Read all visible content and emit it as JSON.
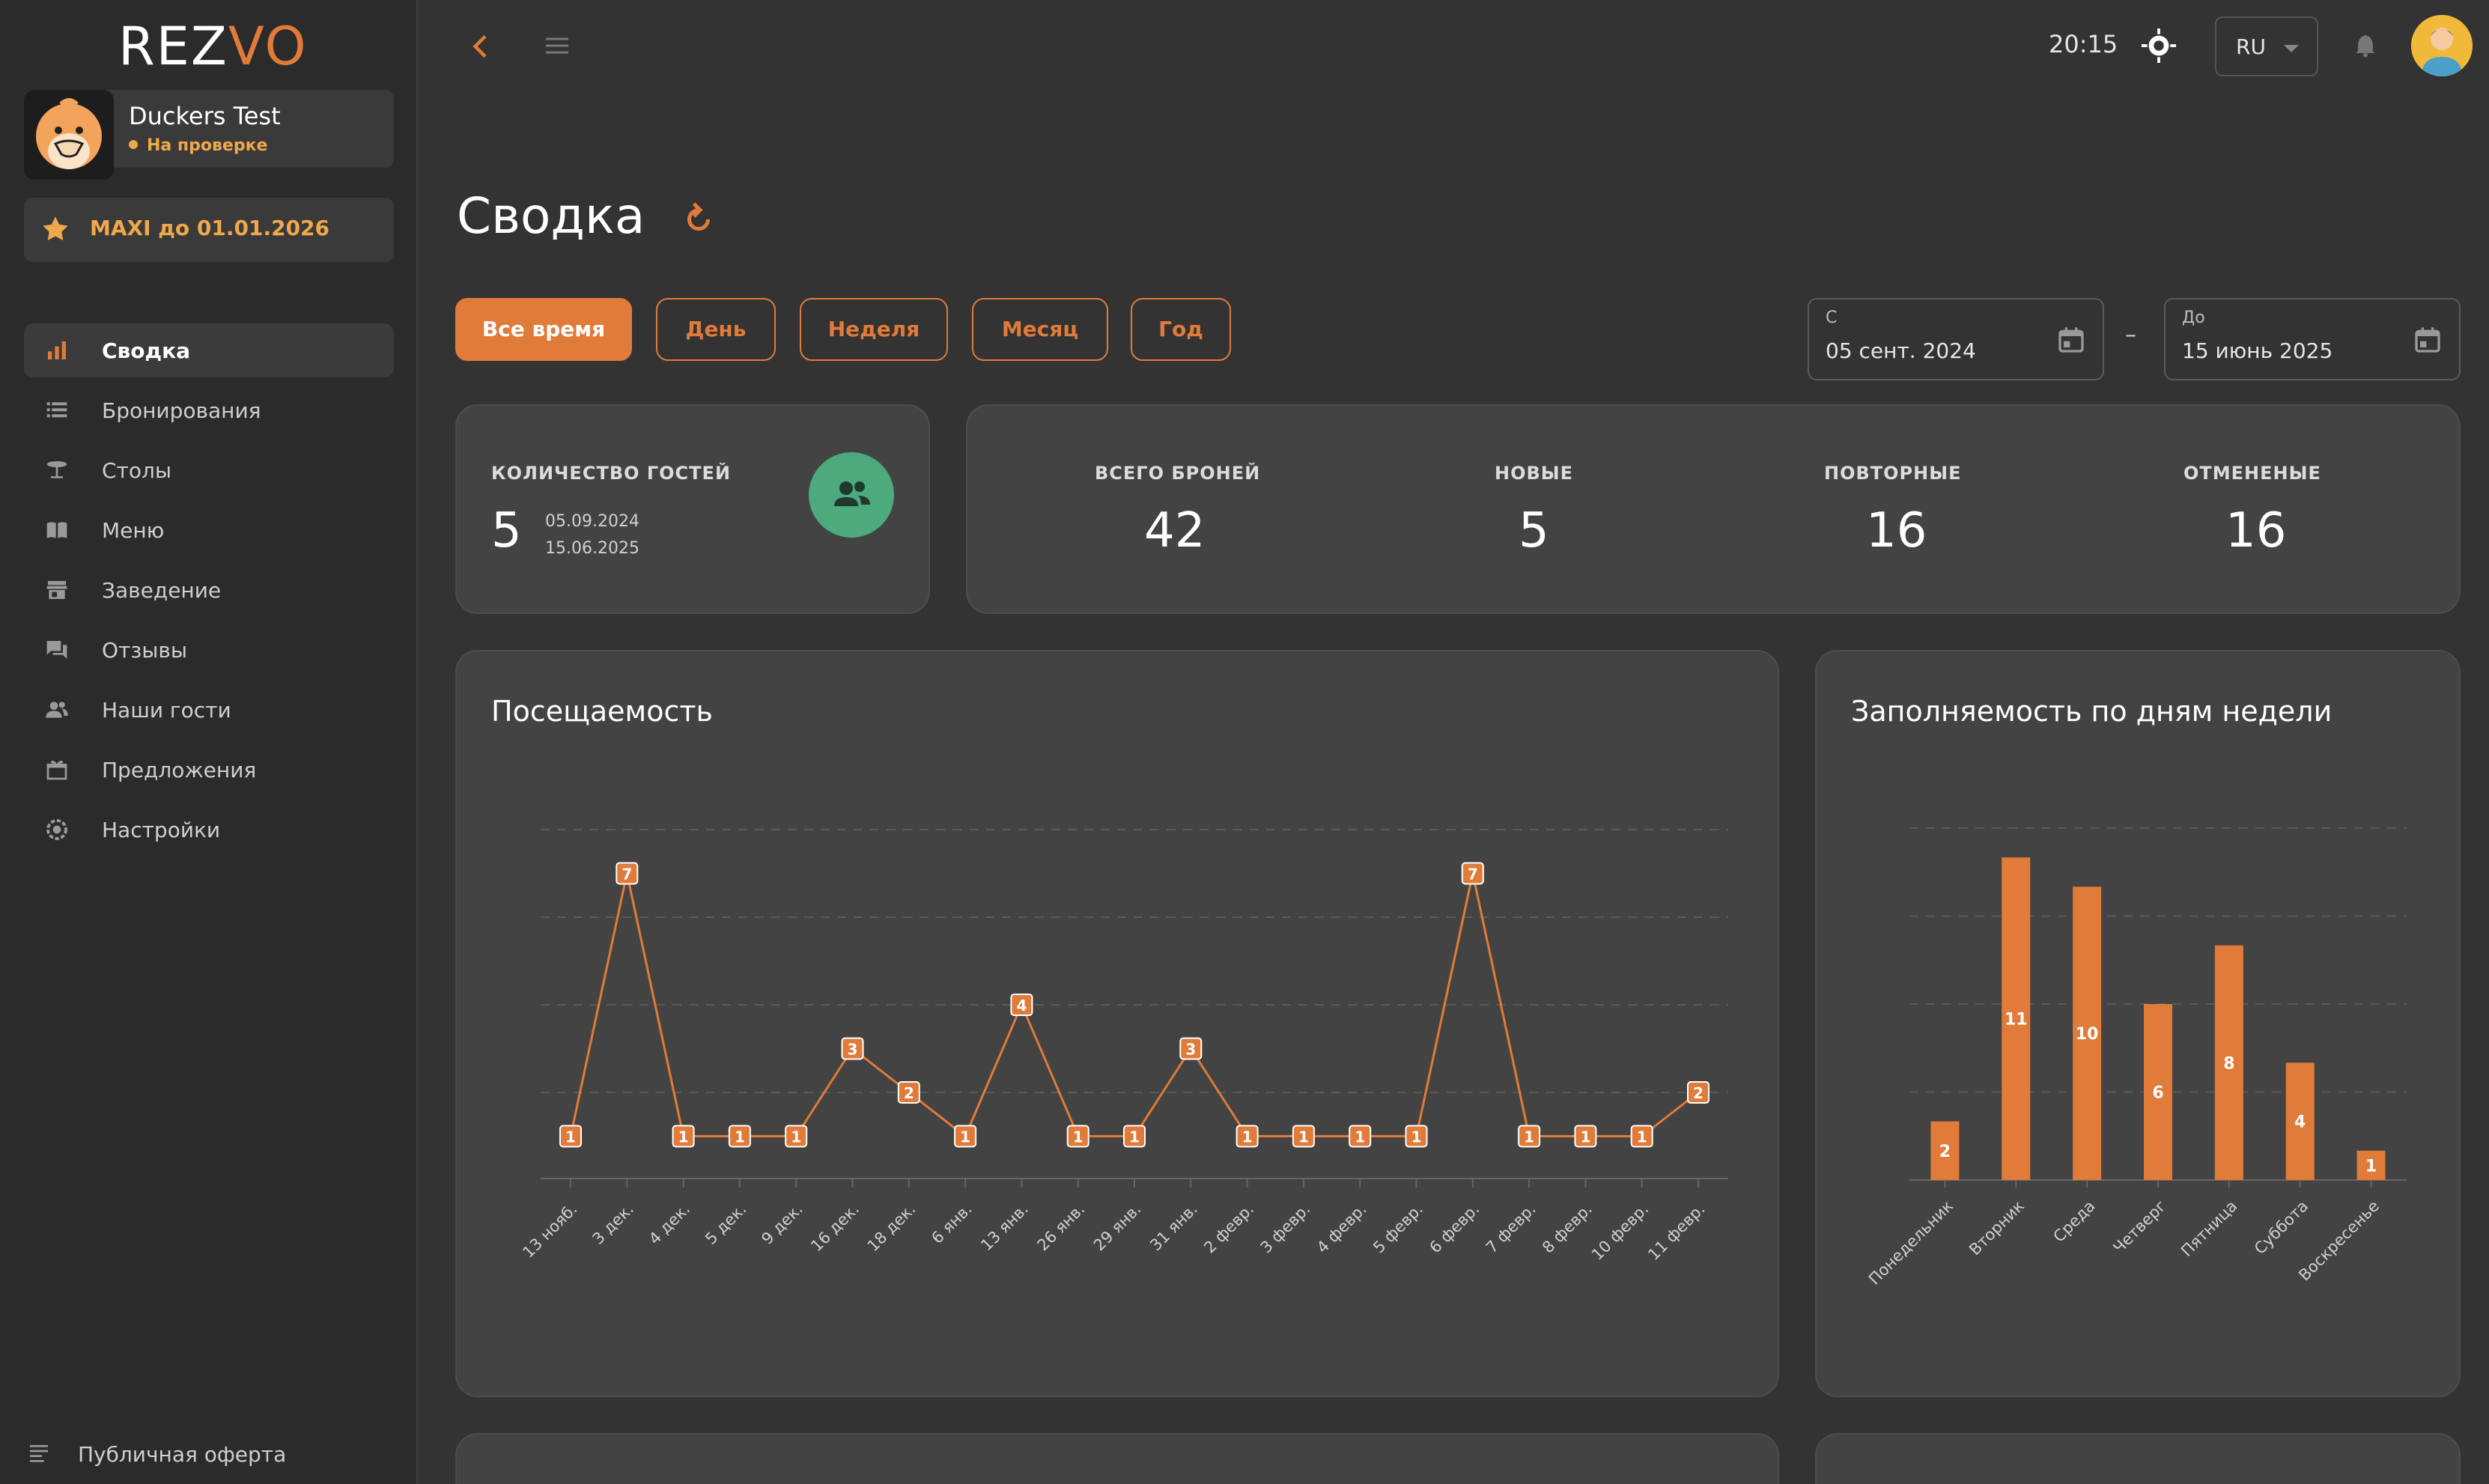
{
  "brand": {
    "logo_main": "REZ",
    "logo_accent": "VO"
  },
  "profile": {
    "name": "Duckers Test",
    "status": "На проверке"
  },
  "plan": {
    "label": "MAXI до 01.01.2026"
  },
  "sidebar": {
    "items": [
      {
        "label": "Сводка",
        "icon": "chart-bar-icon",
        "active": true
      },
      {
        "label": "Бронирования",
        "icon": "list-icon"
      },
      {
        "label": "Столы",
        "icon": "table-icon"
      },
      {
        "label": "Меню",
        "icon": "menu-book-icon"
      },
      {
        "label": "Заведение",
        "icon": "store-icon"
      },
      {
        "label": "Отзывы",
        "icon": "reviews-icon"
      },
      {
        "label": "Наши гости",
        "icon": "guests-icon"
      },
      {
        "label": "Предложения",
        "icon": "offers-icon"
      },
      {
        "label": "Настройки",
        "icon": "settings-icon"
      }
    ],
    "footer_link": "Публичная оферта"
  },
  "topbar": {
    "time": "20:15",
    "language": "RU"
  },
  "page": {
    "title": "Сводка"
  },
  "filters": {
    "periods": [
      "Все время",
      "День",
      "Неделя",
      "Месяц",
      "Год"
    ],
    "active_period": "Все время",
    "from_label": "С",
    "from_value": "05 сент. 2024",
    "to_label": "До",
    "to_value": "15 июнь 2025",
    "separator": "–"
  },
  "guests_card": {
    "label": "КОЛИЧЕСТВО ГОСТЕЙ",
    "value": "5",
    "range_start": "05.09.2024",
    "range_end": "15.06.2025"
  },
  "bookings_card": {
    "stats": [
      {
        "label": "ВСЕГО БРОНЕЙ",
        "value": "42"
      },
      {
        "label": "НОВЫЕ",
        "value": "5"
      },
      {
        "label": "ПОВТОРНЫЕ",
        "value": "16"
      },
      {
        "label": "ОТМЕНЕНЫЕ",
        "value": "16"
      }
    ]
  },
  "colors": {
    "accent": "#e07b39",
    "green": "#4caa7d",
    "background": "#333333",
    "card": "#434343"
  },
  "chart_data": [
    {
      "type": "line",
      "title": "Посещаемость",
      "categories": [
        "13 нояб.",
        "3 дек.",
        "4 дек.",
        "5 дек.",
        "9 дек.",
        "16 дек.",
        "18 дек.",
        "6 янв.",
        "13 янв.",
        "26 янв.",
        "29 янв.",
        "31 янв.",
        "2 февр.",
        "3 февр.",
        "4 февр.",
        "5 февр.",
        "6 февр.",
        "7 февр.",
        "8 февр.",
        "10 февр.",
        "11 февр."
      ],
      "values": [
        1,
        7,
        1,
        1,
        1,
        3,
        2,
        1,
        4,
        1,
        1,
        3,
        1,
        1,
        1,
        1,
        7,
        1,
        1,
        1,
        2
      ],
      "ylim": [
        0,
        8
      ],
      "grid": true,
      "data_labels": true
    },
    {
      "type": "bar",
      "title": "Заполняемость по дням недели",
      "categories": [
        "Понедельник",
        "Вторник",
        "Среда",
        "Четверг",
        "Пятница",
        "Суббота",
        "Воскресенье"
      ],
      "values": [
        2,
        11,
        10,
        6,
        8,
        4,
        1
      ],
      "ylim": [
        0,
        12
      ],
      "grid": true,
      "data_labels": true
    }
  ]
}
